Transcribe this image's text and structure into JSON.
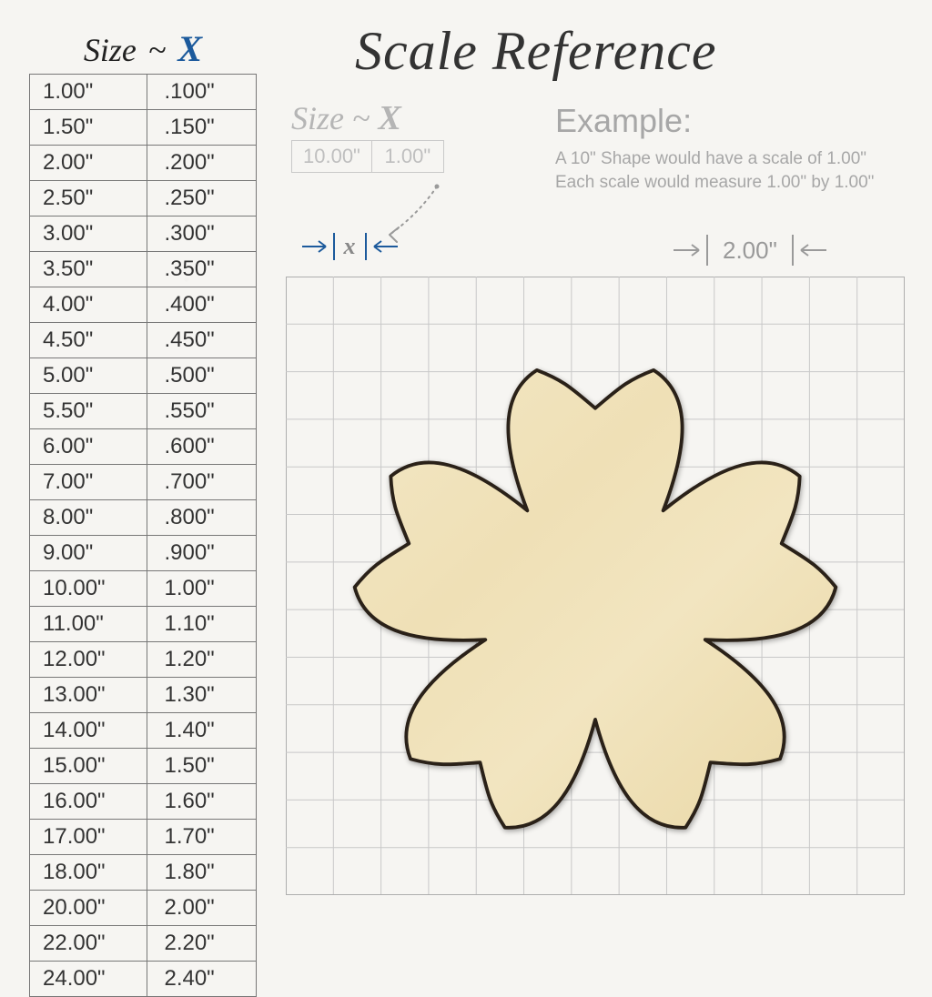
{
  "title": "Scale Reference",
  "leftTable": {
    "header": {
      "size": "Size",
      "tilde": "~",
      "x": "X"
    },
    "rows": [
      [
        "1.00\"",
        ".100\""
      ],
      [
        "1.50\"",
        ".150\""
      ],
      [
        "2.00\"",
        ".200\""
      ],
      [
        "2.50\"",
        ".250\""
      ],
      [
        "3.00\"",
        ".300\""
      ],
      [
        "3.50\"",
        ".350\""
      ],
      [
        "4.00\"",
        ".400\""
      ],
      [
        "4.50\"",
        ".450\""
      ],
      [
        "5.00\"",
        ".500\""
      ],
      [
        "5.50\"",
        ".550\""
      ],
      [
        "6.00\"",
        ".600\""
      ],
      [
        "7.00\"",
        ".700\""
      ],
      [
        "8.00\"",
        ".800\""
      ],
      [
        "9.00\"",
        ".900\""
      ],
      [
        "10.00\"",
        "1.00\""
      ],
      [
        "11.00\"",
        "1.10\""
      ],
      [
        "12.00\"",
        "1.20\""
      ],
      [
        "13.00\"",
        "1.30\""
      ],
      [
        "14.00\"",
        "1.40\""
      ],
      [
        "15.00\"",
        "1.50\""
      ],
      [
        "16.00\"",
        "1.60\""
      ],
      [
        "17.00\"",
        "1.70\""
      ],
      [
        "18.00\"",
        "1.80\""
      ],
      [
        "20.00\"",
        "2.00\""
      ],
      [
        "22.00\"",
        "2.20\""
      ],
      [
        "24.00\"",
        "2.40\""
      ]
    ]
  },
  "secondary": {
    "header": {
      "size": "Size",
      "tilde": "~",
      "x": "X"
    },
    "cells": [
      "10.00\"",
      "1.00\""
    ]
  },
  "xIndicator": {
    "label": "x"
  },
  "example": {
    "title": "Example:",
    "line1": "A 10\" Shape would have a scale of 1.00\"",
    "line2": "Each scale would measure 1.00\" by 1.00\""
  },
  "twoInch": {
    "label": "2.00\""
  },
  "grid": {
    "cells": 13,
    "lineColor": "#c8c8c8",
    "borderColor": "#aeaeae",
    "background": "#f6f5f2",
    "cellPx": 52.3
  },
  "flower": {
    "fill1": "#f1e3bd",
    "fill2": "#ecdba8",
    "stroke": "#2a2118",
    "strokeWidth": 1.4
  },
  "colors": {
    "titleColor": "#2b2b2b",
    "accentBlue": "#1c5a9c",
    "mutedGray": "#b5b5b5",
    "labelGray": "#a7a7a7",
    "arrowGray": "#9a9a9a",
    "tableBorder": "#777777",
    "pageBg": "#f6f5f2"
  },
  "fonts": {
    "titleSize": 60,
    "tableHeaderSize": 36,
    "tableCellSize": 24,
    "exampleTitleSize": 36,
    "exampleBodySize": 19,
    "twoInchSize": 26
  }
}
